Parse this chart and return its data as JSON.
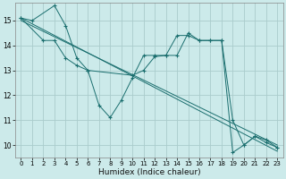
{
  "xlabel": "Humidex (Indice chaleur)",
  "bg_color": "#cceaea",
  "grid_color": "#aacccc",
  "line_color": "#1a6e6e",
  "xlim": [
    -0.5,
    23.5
  ],
  "ylim": [
    9.5,
    15.7
  ],
  "yticks": [
    10,
    11,
    12,
    13,
    14,
    15
  ],
  "xticks": [
    0,
    1,
    2,
    3,
    4,
    5,
    6,
    7,
    8,
    9,
    10,
    11,
    12,
    13,
    14,
    15,
    16,
    17,
    18,
    19,
    20,
    21,
    22,
    23
  ],
  "series1_x": [
    0,
    1,
    3,
    4,
    5,
    6,
    7,
    8,
    9,
    10,
    11,
    12,
    13,
    14,
    15,
    16,
    17,
    18,
    19,
    20,
    21,
    22,
    23
  ],
  "series1_y": [
    15.1,
    15.0,
    15.6,
    14.8,
    13.5,
    13.0,
    11.6,
    11.1,
    11.8,
    12.7,
    13.6,
    13.6,
    13.6,
    13.6,
    14.5,
    14.2,
    14.2,
    14.2,
    9.7,
    10.0,
    10.35,
    10.1,
    9.9
  ],
  "series2_x": [
    0,
    2,
    3,
    4,
    5,
    6,
    10,
    11,
    12,
    13,
    14,
    15,
    16,
    17,
    18,
    19,
    20,
    21,
    22,
    23
  ],
  "series2_y": [
    15.1,
    14.2,
    14.2,
    13.5,
    13.2,
    13.0,
    12.8,
    13.0,
    13.55,
    13.6,
    14.4,
    14.4,
    14.2,
    14.2,
    14.2,
    11.0,
    10.0,
    10.35,
    10.2,
    9.9
  ],
  "line3_x": [
    0,
    23
  ],
  "line3_y": [
    15.1,
    9.75
  ],
  "line4_x": [
    0,
    23
  ],
  "line4_y": [
    15.0,
    10.0
  ],
  "xlabel_fontsize": 6.5,
  "tick_fontsize": 5.5
}
